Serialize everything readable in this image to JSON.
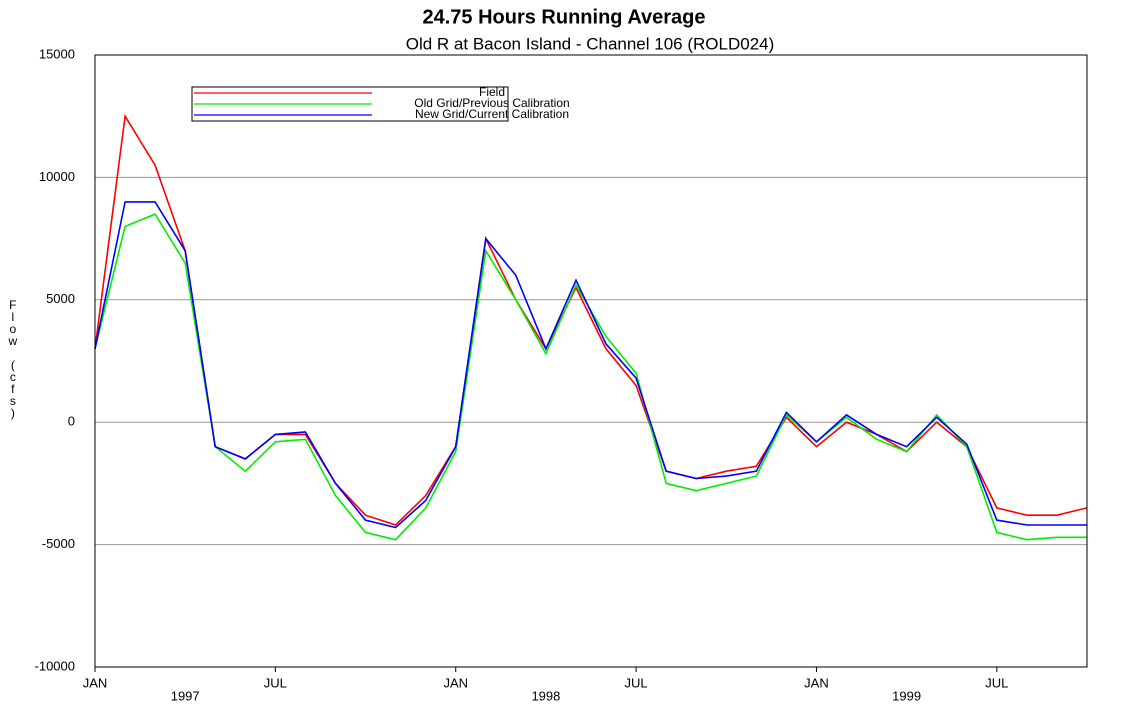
{
  "chart_data": {
    "type": "line",
    "title": "24.75 Hours Running Average",
    "subtitle": "Old R at Bacon Island - Channel 106 (ROLD024)",
    "y_label": "Flow (cfs)",
    "x": [
      "1997-01",
      "1997-02",
      "1997-03",
      "1997-04",
      "1997-05",
      "1997-06",
      "1997-07",
      "1997-08",
      "1997-09",
      "1997-10",
      "1997-11",
      "1997-12",
      "1998-01",
      "1998-02",
      "1998-03",
      "1998-04",
      "1998-05",
      "1998-06",
      "1998-07",
      "1998-08",
      "1998-09",
      "1998-10",
      "1998-11",
      "1998-12",
      "1999-01",
      "1999-02",
      "1999-03",
      "1999-04",
      "1999-05",
      "1999-06",
      "1999-07",
      "1999-08",
      "1999-09",
      "1999-10"
    ],
    "series": [
      {
        "name": "Field",
        "color": "#ff0000",
        "values": [
          3000,
          12500,
          10500,
          7000,
          -1000,
          -1500,
          -500,
          -500,
          -2500,
          -3800,
          -4200,
          -3000,
          -1000,
          7500,
          5000,
          3000,
          5500,
          3000,
          1500,
          -2000,
          -2300,
          -2000,
          -1800,
          200,
          -1000,
          0,
          -500,
          -1200,
          0,
          -1000,
          -3500,
          -3800,
          -3800,
          -3500
        ]
      },
      {
        "name": "Old Grid/Previous Calibration",
        "color": "#00ee00",
        "values": [
          3000,
          8000,
          8500,
          6500,
          -1000,
          -2000,
          -800,
          -700,
          -3000,
          -4500,
          -4800,
          -3500,
          -1200,
          7000,
          5000,
          2800,
          5600,
          3500,
          2000,
          -2500,
          -2800,
          -2500,
          -2200,
          300,
          -800,
          200,
          -700,
          -1200,
          300,
          -1000,
          -4500,
          -4800,
          -4700,
          -4700
        ]
      },
      {
        "name": "New Grid/Current Calibration",
        "color": "#0000ff",
        "values": [
          3000,
          9000,
          9000,
          7000,
          -1000,
          -1500,
          -500,
          -400,
          -2500,
          -4000,
          -4300,
          -3200,
          -1000,
          7500,
          6000,
          3000,
          5800,
          3200,
          1800,
          -2000,
          -2300,
          -2200,
          -2000,
          400,
          -800,
          300,
          -500,
          -1000,
          200,
          -900,
          -4000,
          -4200,
          -4200,
          -4200
        ]
      }
    ],
    "xlim": [
      "1997-01",
      "1999-10"
    ],
    "xticks": [
      {
        "value": "1997-01",
        "label": "JAN"
      },
      {
        "value": "1997-07",
        "label": "JUL"
      },
      {
        "value": "1998-01",
        "label": "JAN"
      },
      {
        "value": "1998-07",
        "label": "JUL"
      },
      {
        "value": "1999-01",
        "label": "JAN"
      },
      {
        "value": "1999-07",
        "label": "JUL"
      }
    ],
    "x_year_labels": [
      {
        "value": "1997-04",
        "label": "1997"
      },
      {
        "value": "1998-04",
        "label": "1998"
      },
      {
        "value": "1999-04",
        "label": "1999"
      }
    ],
    "ylim": [
      -10000,
      15000
    ],
    "yticks": [
      -10000,
      -5000,
      0,
      5000,
      10000,
      15000
    ],
    "grid": true,
    "legend": "upper left"
  }
}
